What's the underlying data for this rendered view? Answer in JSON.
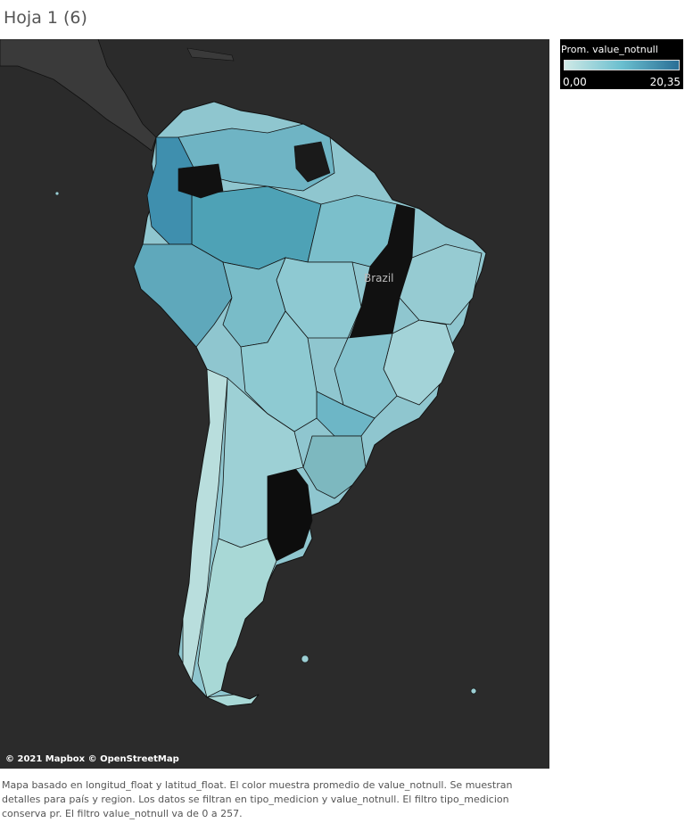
{
  "sheet": {
    "title": "Hoja 1 (6)"
  },
  "map": {
    "attribution": "© 2021 Mapbox © OpenStreetMap",
    "country_label": "Brazil",
    "background_color": "#2b2b2b",
    "no_data_color": "#111111"
  },
  "legend": {
    "title": "Prom. value_notnull",
    "min_label": "0,00",
    "max_label": "20,35",
    "color_low": "#cfe9e6",
    "color_high": "#2a6f96"
  },
  "caption": {
    "text": "Mapa basado en longitud_float y latitud_float.  El color muestra promedio de value_notnull.  Se muestran detalles para país y region. Los datos se filtran en tipo_medicion y value_notnull. El filtro tipo_medicion conserva pr. El filtro value_notnull va de 0 a 257."
  }
}
